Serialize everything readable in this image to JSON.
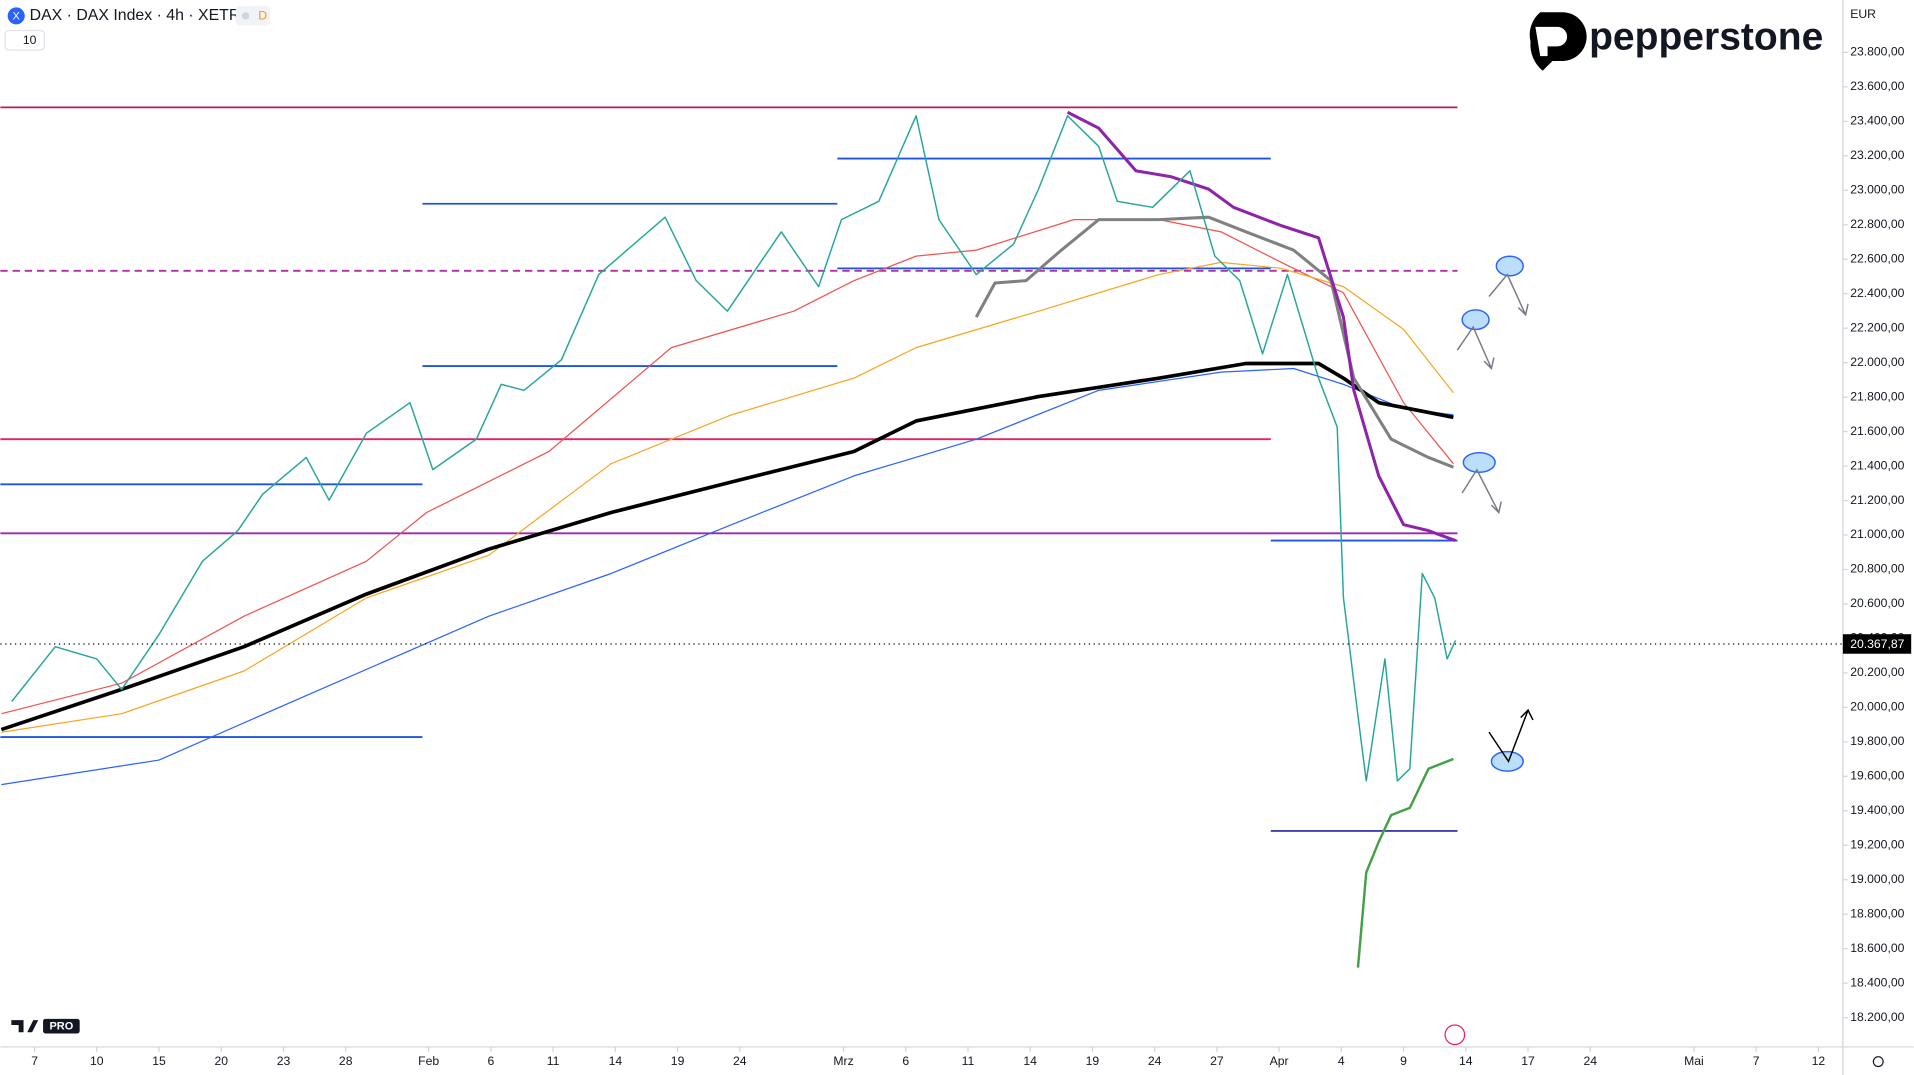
{
  "chart_data": {
    "type": "line",
    "header": {
      "symbol_badge": "X",
      "title": "DAX · DAX Index · 4h · XETR",
      "flag": "D",
      "indicator": "10"
    },
    "currency": "EUR",
    "brand": "pepperstone",
    "tv_badge": "PRO",
    "xlim": [
      -1.65,
      87.18
    ],
    "xticks": [
      {
        "value": 0,
        "label": "7"
      },
      {
        "value": 3,
        "label": "10"
      },
      {
        "value": 6,
        "label": "15"
      },
      {
        "value": 9,
        "label": "20"
      },
      {
        "value": 12,
        "label": "23"
      },
      {
        "value": 15,
        "label": "28"
      },
      {
        "value": 19,
        "label": "Feb"
      },
      {
        "value": 22,
        "label": "6"
      },
      {
        "value": 25,
        "label": "11"
      },
      {
        "value": 28,
        "label": "14"
      },
      {
        "value": 31,
        "label": "19"
      },
      {
        "value": 34,
        "label": "24"
      },
      {
        "value": 39,
        "label": "Mrz"
      },
      {
        "value": 42,
        "label": "6"
      },
      {
        "value": 45,
        "label": "11"
      },
      {
        "value": 48,
        "label": "14"
      },
      {
        "value": 51,
        "label": "19"
      },
      {
        "value": 54,
        "label": "24"
      },
      {
        "value": 57,
        "label": "27"
      },
      {
        "value": 60,
        "label": "Apr"
      },
      {
        "value": 63,
        "label": "4"
      },
      {
        "value": 66,
        "label": "9"
      },
      {
        "value": 69,
        "label": "14"
      },
      {
        "value": 72,
        "label": "17"
      },
      {
        "value": 75,
        "label": "24"
      },
      {
        "value": 80,
        "label": "Mai"
      },
      {
        "value": 83,
        "label": "7"
      },
      {
        "value": 86,
        "label": "12"
      }
    ],
    "ylim": [
      18030,
      24104
    ],
    "yticks": [
      {
        "value": 18200,
        "label": "18.200,00"
      },
      {
        "value": 18400,
        "label": "18.400,00"
      },
      {
        "value": 18600,
        "label": "18.600,00"
      },
      {
        "value": 18800,
        "label": "18.800,00"
      },
      {
        "value": 19000,
        "label": "19.000,00"
      },
      {
        "value": 19200,
        "label": "19.200,00"
      },
      {
        "value": 19400,
        "label": "19.400,00"
      },
      {
        "value": 19600,
        "label": "19.600,00"
      },
      {
        "value": 19800,
        "label": "19.800,00"
      },
      {
        "value": 20000,
        "label": "20.000,00"
      },
      {
        "value": 20200,
        "label": "20.200,00"
      },
      {
        "value": 20400,
        "label": "20.400,00"
      },
      {
        "value": 20600,
        "label": "20.600,00"
      },
      {
        "value": 20800,
        "label": "20.800,00"
      },
      {
        "value": 21000,
        "label": "21.000,00"
      },
      {
        "value": 21200,
        "label": "21.200,00"
      },
      {
        "value": 21400,
        "label": "21.400,00"
      },
      {
        "value": 21600,
        "label": "21.600,00"
      },
      {
        "value": 21800,
        "label": "21.800,00"
      },
      {
        "value": 22000,
        "label": "22.000,00"
      },
      {
        "value": 22200,
        "label": "22.200,00"
      },
      {
        "value": 22400,
        "label": "22.400,00"
      },
      {
        "value": 22600,
        "label": "22.600,00"
      },
      {
        "value": 22800,
        "label": "22.800,00"
      },
      {
        "value": 23000,
        "label": "23.000,00"
      },
      {
        "value": 23200,
        "label": "23.200,00"
      },
      {
        "value": 23400,
        "label": "23.400,00"
      },
      {
        "value": 23600,
        "label": "23.600,00"
      },
      {
        "value": 23800,
        "label": "23.800,00"
      }
    ],
    "last_price": {
      "value": 20367.87,
      "label": "20.367,87"
    },
    "levels": [
      {
        "value": 23481,
        "x": [
          -1.65,
          68.6
        ],
        "color": "#c2185b",
        "dashed": false
      },
      {
        "value": 23184,
        "x": [
          38.7,
          59.6
        ],
        "color": "#1e53e5",
        "dashed": false
      },
      {
        "value": 22922,
        "x": [
          18.7,
          38.7
        ],
        "color": "#1e53e5",
        "dashed": false
      },
      {
        "value": 22533,
        "x": [
          -1.65,
          68.6
        ],
        "color": "#b02fa8",
        "dashed": true
      },
      {
        "value": 22547,
        "x": [
          38.7,
          59.6
        ],
        "color": "#1e53e5",
        "dashed": false
      },
      {
        "value": 21980,
        "x": [
          18.7,
          38.7
        ],
        "color": "#1e53e5",
        "dashed": false
      },
      {
        "value": 21556,
        "x": [
          -1.65,
          59.6
        ],
        "color": "#e91e63",
        "dashed": false
      },
      {
        "value": 21294,
        "x": [
          -1.65,
          18.7
        ],
        "color": "#1e53e5",
        "dashed": false
      },
      {
        "value": 21010,
        "x": [
          -1.65,
          68.6
        ],
        "color": "#9c27b0",
        "dashed": false
      },
      {
        "value": 20968,
        "x": [
          59.6,
          68.6
        ],
        "color": "#1e53e5",
        "dashed": false
      },
      {
        "value": 19828,
        "x": [
          -1.65,
          18.7
        ],
        "color": "#1e53e5",
        "dashed": false
      },
      {
        "value": 19283,
        "x": [
          59.6,
          68.6
        ],
        "color": "#3f3fb0",
        "dashed": false
      }
    ],
    "series": [
      {
        "color": "#ef5350",
        "width": 1,
        "x": [
          -1.6,
          4.2,
          10.1,
          16.0,
          18.9,
          24.8,
          30.7,
          36.6,
          39.5,
          42.5,
          45.4,
          50.1,
          54.2,
          57.2,
          60.1,
          63.1,
          66.0,
          68.4
        ],
        "values": [
          19963,
          20140,
          20529,
          20848,
          21131,
          21485,
          22087,
          22299,
          22476,
          22618,
          22653,
          22830,
          22830,
          22759,
          22582,
          22405,
          21768,
          21414
        ]
      },
      {
        "color": "#f5a623",
        "width": 1,
        "x": [
          -1.6,
          4.2,
          10.1,
          16.0,
          21.9,
          27.8,
          33.6,
          39.5,
          42.5,
          48.4,
          54.2,
          57.2,
          60.1,
          63.1,
          66.0,
          68.4
        ],
        "values": [
          19856,
          19963,
          20211,
          20635,
          20883,
          21414,
          21697,
          21910,
          22087,
          22299,
          22511,
          22582,
          22547,
          22441,
          22193,
          21825
        ]
      },
      {
        "color": "#2962ff",
        "width": 1,
        "x": [
          -1.6,
          6.0,
          13.1,
          21.9,
          27.8,
          33.6,
          39.5,
          45.4,
          51.3,
          57.2,
          60.7,
          63.1,
          66.0,
          68.4
        ],
        "values": [
          19552,
          19694,
          20069,
          20529,
          20777,
          21060,
          21343,
          21556,
          21839,
          21945,
          21966,
          21874,
          21733,
          21697
        ]
      },
      {
        "color": "#000000",
        "width": 3,
        "x": [
          -1.6,
          4.2,
          10.1,
          16.0,
          21.9,
          27.8,
          33.6,
          39.5,
          42.5,
          48.4,
          54.2,
          58.4,
          61.9,
          63.1,
          64.8,
          68.4
        ],
        "values": [
          19871,
          20104,
          20352,
          20657,
          20918,
          21131,
          21308,
          21485,
          21662,
          21803,
          21910,
          21995,
          21995,
          21910,
          21768,
          21683
        ]
      },
      {
        "color": "#808080",
        "width": 2.5,
        "x": [
          45.4,
          46.3,
          47.8,
          49.5,
          51.3,
          54.2,
          56.6,
          58.4,
          60.7,
          62.5,
          63.6,
          65.4,
          67.2,
          68.4
        ],
        "values": [
          22264,
          22462,
          22476,
          22653,
          22830,
          22830,
          22844,
          22759,
          22653,
          22476,
          21910,
          21556,
          21450,
          21393
        ]
      },
      {
        "color": "#8e24aa",
        "width": 2.5,
        "x": [
          49.8,
          51.3,
          53.1,
          54.8,
          56.6,
          57.8,
          60.1,
          61.9,
          63.1,
          63.6,
          64.8,
          66.0,
          67.2,
          68.5
        ],
        "values": [
          23453,
          23361,
          23113,
          23078,
          23007,
          22901,
          22795,
          22724,
          22264,
          21839,
          21343,
          21060,
          21025,
          20968
        ]
      },
      {
        "color": "#43a047",
        "width": 2,
        "x": [
          63.8,
          64.2,
          64.8,
          65.4,
          66.3,
          67.2,
          68.4
        ],
        "values": [
          18490,
          19042,
          19219,
          19375,
          19417,
          19644,
          19701
        ]
      },
      {
        "color": "#26a69a",
        "width": 1.2,
        "x": [
          -1.1,
          1.0,
          3.0,
          4.2,
          6.0,
          8.1,
          9.8,
          11.0,
          13.1,
          14.2,
          16.0,
          18.1,
          19.2,
          21.3,
          22.5,
          23.6,
          25.4,
          27.2,
          28.9,
          30.4,
          31.9,
          33.4,
          36.0,
          37.8,
          38.9,
          40.7,
          42.5,
          43.6,
          45.4,
          47.2,
          48.4,
          49.8,
          51.3,
          52.2,
          53.9,
          55.7,
          56.9,
          58.1,
          59.2,
          60.4,
          61.9,
          62.8,
          63.1,
          63.9,
          64.2,
          65.1,
          65.7,
          66.3,
          66.9,
          67.5,
          68.1,
          68.5
        ],
        "values": [
          20034,
          20352,
          20281,
          20104,
          20423,
          20848,
          21025,
          21237,
          21450,
          21202,
          21591,
          21768,
          21379,
          21556,
          21874,
          21839,
          22016,
          22511,
          22688,
          22844,
          22476,
          22299,
          22759,
          22441,
          22830,
          22936,
          23432,
          22830,
          22511,
          22688,
          23007,
          23432,
          23255,
          22936,
          22901,
          23113,
          22618,
          22476,
          22051,
          22511,
          21910,
          21626,
          20635,
          19856,
          19573,
          20281,
          19573,
          19644,
          20777,
          20635,
          20281,
          20388
        ]
      }
    ]
  }
}
